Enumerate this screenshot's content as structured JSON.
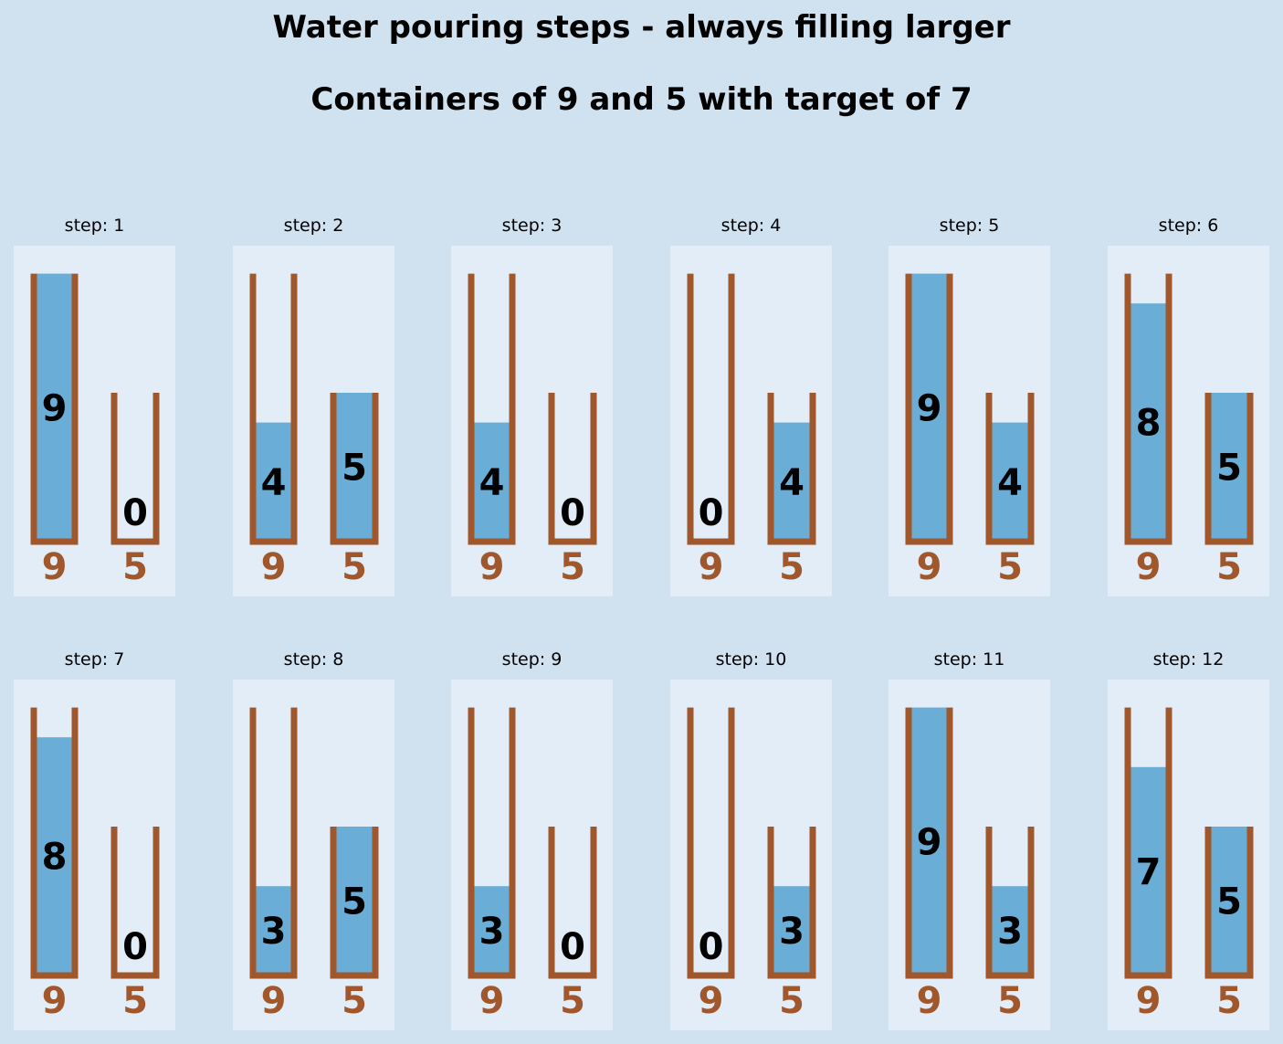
{
  "header": {
    "title": "Water pouring steps - always filling larger",
    "subtitle": "Containers of 9 and 5 with target of 7"
  },
  "colors": {
    "background": "#d0e1f0",
    "panel": "#e3edf8",
    "water": "#6aadd6",
    "container": "#a0572b",
    "level_text": "#000000",
    "capacity_text": "#a0572b"
  },
  "chart_data": {
    "type": "bar",
    "title": "Water pouring steps - always filling larger",
    "subtitle": "Containers of 9 and 5 with target of 7",
    "capacities": [
      9,
      5
    ],
    "target": 7,
    "layout": {
      "rows": 2,
      "cols": 6
    },
    "categories": [
      "step: 1",
      "step: 2",
      "step: 3",
      "step: 4",
      "step: 5",
      "step: 6",
      "step: 7",
      "step: 8",
      "step: 9",
      "step: 10",
      "step: 11",
      "step: 12"
    ],
    "series": [
      {
        "name": "container 9",
        "values": [
          9,
          4,
          4,
          0,
          9,
          8,
          8,
          3,
          3,
          0,
          9,
          7
        ]
      },
      {
        "name": "container 5",
        "values": [
          0,
          5,
          0,
          4,
          4,
          5,
          0,
          5,
          0,
          3,
          3,
          5
        ]
      }
    ]
  },
  "steps": [
    {
      "label": "step: 1",
      "a": 9,
      "b": 0
    },
    {
      "label": "step: 2",
      "a": 4,
      "b": 5
    },
    {
      "label": "step: 3",
      "a": 4,
      "b": 0
    },
    {
      "label": "step: 4",
      "a": 0,
      "b": 4
    },
    {
      "label": "step: 5",
      "a": 9,
      "b": 4
    },
    {
      "label": "step: 6",
      "a": 8,
      "b": 5
    },
    {
      "label": "step: 7",
      "a": 8,
      "b": 0
    },
    {
      "label": "step: 8",
      "a": 3,
      "b": 5
    },
    {
      "label": "step: 9",
      "a": 3,
      "b": 0
    },
    {
      "label": "step: 10",
      "a": 0,
      "b": 3
    },
    {
      "label": "step: 11",
      "a": 9,
      "b": 3
    },
    {
      "label": "step: 12",
      "a": 7,
      "b": 5
    }
  ]
}
